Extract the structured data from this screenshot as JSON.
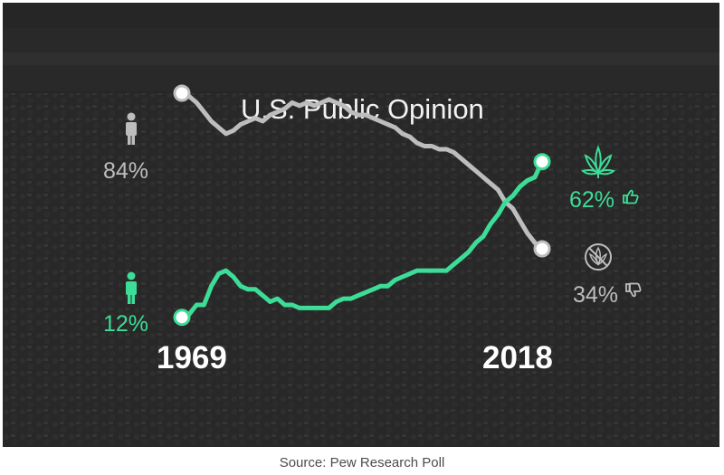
{
  "chart_data": {
    "type": "line",
    "title": "U.S. Public Opinion",
    "x_start_label": "1969",
    "x_end_label": "2018",
    "ylim": [
      0,
      100
    ],
    "series": [
      {
        "key": "oppose",
        "color": "#bdbdbd",
        "start_label": "84%",
        "end_label": "34%",
        "x": [
          1969,
          1970,
          1971,
          1972,
          1973,
          1974,
          1975,
          1976,
          1977,
          1978,
          1979,
          1980,
          1981,
          1982,
          1983,
          1984,
          1985,
          1986,
          1987,
          1988,
          1989,
          1990,
          1991,
          1992,
          1993,
          1994,
          1995,
          1996,
          1997,
          1998,
          1999,
          2000,
          2001,
          2002,
          2003,
          2004,
          2005,
          2006,
          2007,
          2008,
          2009,
          2010,
          2011,
          2012,
          2013,
          2014,
          2015,
          2016,
          2017,
          2018
        ],
        "values": [
          84,
          83,
          81,
          78,
          75,
          73,
          71,
          72,
          74,
          75,
          76,
          75,
          77,
          78,
          79,
          81,
          80,
          81,
          80,
          81,
          82,
          81,
          80,
          78,
          77,
          77,
          76,
          75,
          74,
          73,
          71,
          70,
          68,
          67,
          67,
          66,
          66,
          65,
          63,
          61,
          59,
          57,
          55,
          53,
          49,
          47,
          43,
          39,
          36,
          34
        ]
      },
      {
        "key": "support",
        "color": "#3ddc97",
        "start_label": "12%",
        "end_label": "62%",
        "x": [
          1969,
          1970,
          1971,
          1972,
          1973,
          1974,
          1975,
          1976,
          1977,
          1978,
          1979,
          1980,
          1981,
          1982,
          1983,
          1984,
          1985,
          1986,
          1987,
          1988,
          1989,
          1990,
          1991,
          1992,
          1993,
          1994,
          1995,
          1996,
          1997,
          1998,
          1999,
          2000,
          2001,
          2002,
          2003,
          2004,
          2005,
          2006,
          2007,
          2008,
          2009,
          2010,
          2011,
          2012,
          2013,
          2014,
          2015,
          2016,
          2017,
          2018
        ],
        "values": [
          12,
          13,
          16,
          16,
          22,
          26,
          27,
          25,
          22,
          21,
          21,
          19,
          17,
          18,
          16,
          16,
          15,
          15,
          15,
          15,
          15,
          17,
          18,
          18,
          19,
          20,
          21,
          22,
          22,
          24,
          25,
          26,
          27,
          27,
          27,
          27,
          27,
          29,
          31,
          33,
          36,
          38,
          42,
          45,
          49,
          51,
          54,
          56,
          57,
          62
        ]
      }
    ]
  },
  "icons": {
    "person_gray": "person-icon",
    "person_green": "person-icon",
    "leaf": "cannabis-leaf-icon",
    "no_leaf": "no-cannabis-icon",
    "thumb_up": "thumbs-up-icon",
    "thumb_down": "thumbs-down-icon"
  },
  "colors": {
    "oppose": "#bdbdbd",
    "support": "#3ddc97",
    "background": "#2b2b2b"
  },
  "caption": "Source: Pew Research Poll"
}
